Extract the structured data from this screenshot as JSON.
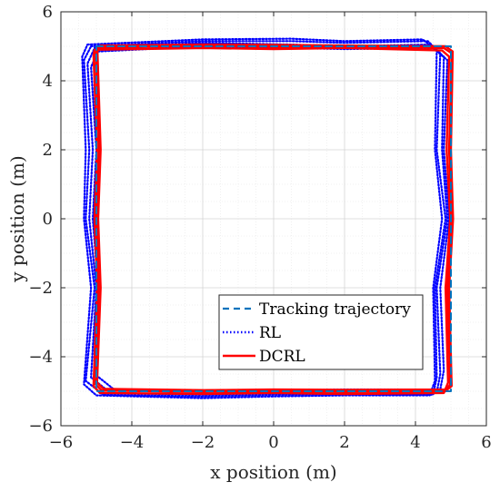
{
  "chart_data": {
    "type": "line",
    "xlabel": "x position (m)",
    "ylabel": "y position (m)",
    "xlim": [
      -6,
      6
    ],
    "ylim": [
      -6,
      6
    ],
    "x_ticks": [
      -6,
      -4,
      -2,
      0,
      2,
      4,
      6
    ],
    "y_ticks": [
      -6,
      -4,
      -2,
      0,
      2,
      4,
      6
    ],
    "x_tick_labels": [
      "−6",
      "−4",
      "−2",
      "0",
      "2",
      "4",
      "6"
    ],
    "y_tick_labels": [
      "−6",
      "−4",
      "−2",
      "0",
      "2",
      "4",
      "6"
    ],
    "grid": true,
    "minor_grid": true,
    "legend_position": "bottom-right",
    "series": [
      {
        "name": "Tracking trajectory",
        "color": "#0072BD",
        "style": "dashed",
        "points": [
          [
            -5,
            5
          ],
          [
            5,
            5
          ],
          [
            5,
            -5
          ],
          [
            -5,
            -5
          ],
          [
            -5,
            5
          ]
        ]
      },
      {
        "name": "RL",
        "color": "#0000FF",
        "style": "dotted",
        "loops": [
          [
            [
              -5.05,
              4.95
            ],
            [
              -2,
              5.1
            ],
            [
              0.5,
              5.05
            ],
            [
              2,
              5.0
            ],
            [
              4.4,
              5.05
            ],
            [
              4.8,
              4.7
            ],
            [
              4.75,
              2
            ],
            [
              4.9,
              0
            ],
            [
              4.6,
              -2
            ],
            [
              4.7,
              -4.5
            ],
            [
              4.6,
              -5.05
            ],
            [
              2,
              -5.0
            ],
            [
              0,
              -5.05
            ],
            [
              -2,
              -5.1
            ],
            [
              -4.6,
              -5.05
            ],
            [
              -5.15,
              -4.6
            ],
            [
              -5.0,
              -2
            ],
            [
              -5.2,
              0
            ],
            [
              -5.1,
              2
            ],
            [
              -5.25,
              4.5
            ],
            [
              -5.05,
              4.95
            ]
          ],
          [
            [
              -5.15,
              5.0
            ],
            [
              -2,
              5.15
            ],
            [
              0.5,
              5.15
            ],
            [
              2,
              5.1
            ],
            [
              4.35,
              5.15
            ],
            [
              4.7,
              4.8
            ],
            [
              4.6,
              2
            ],
            [
              4.85,
              0
            ],
            [
              4.55,
              -2
            ],
            [
              4.6,
              -4.6
            ],
            [
              4.5,
              -5.1
            ],
            [
              2,
              -5.08
            ],
            [
              0,
              -5.1
            ],
            [
              -2,
              -5.15
            ],
            [
              -4.8,
              -5.1
            ],
            [
              -5.3,
              -4.7
            ],
            [
              -5.05,
              -2
            ],
            [
              -5.3,
              0
            ],
            [
              -5.2,
              2
            ],
            [
              -5.35,
              4.6
            ],
            [
              -5.15,
              5.0
            ]
          ],
          [
            [
              -4.95,
              4.85
            ],
            [
              -2,
              5.0
            ],
            [
              0.5,
              4.95
            ],
            [
              2,
              4.92
            ],
            [
              4.5,
              4.95
            ],
            [
              4.9,
              4.6
            ],
            [
              4.8,
              2
            ],
            [
              4.95,
              0
            ],
            [
              4.7,
              -2
            ],
            [
              4.8,
              -4.4
            ],
            [
              4.7,
              -4.95
            ],
            [
              2,
              -4.95
            ],
            [
              0,
              -4.98
            ],
            [
              -2,
              -5.0
            ],
            [
              -4.5,
              -4.95
            ],
            [
              -5.05,
              -4.5
            ],
            [
              -4.95,
              -2
            ],
            [
              -5.1,
              0
            ],
            [
              -5.0,
              2
            ],
            [
              -5.15,
              4.4
            ],
            [
              -4.95,
              4.85
            ]
          ],
          [
            [
              -5.25,
              5.05
            ],
            [
              -2,
              5.2
            ],
            [
              0.5,
              5.22
            ],
            [
              2,
              5.15
            ],
            [
              4.2,
              5.2
            ],
            [
              4.6,
              4.9
            ],
            [
              4.55,
              2
            ],
            [
              4.75,
              0
            ],
            [
              4.5,
              -2
            ],
            [
              4.55,
              -4.7
            ],
            [
              4.4,
              -5.12
            ],
            [
              2,
              -5.12
            ],
            [
              0,
              -5.15
            ],
            [
              -2,
              -5.2
            ],
            [
              -5.0,
              -5.12
            ],
            [
              -5.35,
              -4.8
            ],
            [
              -5.15,
              -2
            ],
            [
              -5.35,
              0
            ],
            [
              -5.3,
              2
            ],
            [
              -5.4,
              4.7
            ],
            [
              -5.25,
              5.05
            ]
          ]
        ]
      },
      {
        "name": "DCRL",
        "color": "#FF0000",
        "style": "solid",
        "loops": [
          [
            [
              -4.95,
              4.95
            ],
            [
              -2,
              5.02
            ],
            [
              0,
              4.98
            ],
            [
              2,
              4.98
            ],
            [
              4.8,
              4.95
            ],
            [
              5.02,
              4.8
            ],
            [
              4.95,
              2
            ],
            [
              5.02,
              0
            ],
            [
              4.9,
              -2
            ],
            [
              4.98,
              -4.8
            ],
            [
              4.85,
              -5.0
            ],
            [
              2,
              -5.02
            ],
            [
              0,
              -5.0
            ],
            [
              -2,
              -5.02
            ],
            [
              -4.85,
              -4.98
            ],
            [
              -5.02,
              -4.8
            ],
            [
              -4.92,
              -2
            ],
            [
              -5.0,
              0
            ],
            [
              -4.92,
              2
            ],
            [
              -5.02,
              4.8
            ],
            [
              -4.95,
              4.95
            ]
          ],
          [
            [
              -5.05,
              4.9
            ],
            [
              -2,
              4.95
            ],
            [
              0,
              4.92
            ],
            [
              2,
              4.95
            ],
            [
              4.75,
              4.88
            ],
            [
              4.95,
              4.7
            ],
            [
              4.88,
              2
            ],
            [
              4.98,
              0
            ],
            [
              4.85,
              -2
            ],
            [
              4.92,
              -4.75
            ],
            [
              4.8,
              -5.05
            ],
            [
              2,
              -5.08
            ],
            [
              0,
              -5.05
            ],
            [
              -2,
              -5.08
            ],
            [
              -4.9,
              -5.05
            ],
            [
              -5.08,
              -4.85
            ],
            [
              -4.98,
              -2
            ],
            [
              -5.05,
              0
            ],
            [
              -4.98,
              2
            ],
            [
              -5.08,
              4.75
            ],
            [
              -5.05,
              4.9
            ]
          ],
          [
            [
              -4.88,
              5.02
            ],
            [
              -2,
              5.05
            ],
            [
              0,
              5.04
            ],
            [
              2,
              5.02
            ],
            [
              4.85,
              5.0
            ],
            [
              5.05,
              4.85
            ],
            [
              5.0,
              2
            ],
            [
              5.06,
              0
            ],
            [
              4.95,
              -2
            ],
            [
              5.02,
              -4.85
            ],
            [
              4.9,
              -4.95
            ],
            [
              2,
              -4.96
            ],
            [
              0,
              -4.95
            ],
            [
              -2,
              -4.97
            ],
            [
              -4.8,
              -4.93
            ],
            [
              -4.98,
              -4.75
            ],
            [
              -4.88,
              -2
            ],
            [
              -4.95,
              0
            ],
            [
              -4.88,
              2
            ],
            [
              -4.97,
              4.85
            ],
            [
              -4.88,
              5.02
            ]
          ]
        ]
      }
    ]
  }
}
